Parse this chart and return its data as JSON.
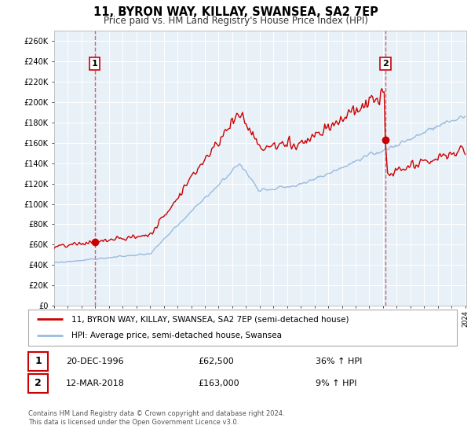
{
  "title": "11, BYRON WAY, KILLAY, SWANSEA, SA2 7EP",
  "subtitle": "Price paid vs. HM Land Registry's House Price Index (HPI)",
  "xlim_start": 1994.0,
  "xlim_end": 2024.08,
  "ylim_min": 0,
  "ylim_max": 270000,
  "yticks": [
    0,
    20000,
    40000,
    60000,
    80000,
    100000,
    120000,
    140000,
    160000,
    180000,
    200000,
    220000,
    240000,
    260000
  ],
  "ytick_labels": [
    "£0",
    "£20K",
    "£40K",
    "£60K",
    "£80K",
    "£100K",
    "£120K",
    "£140K",
    "£160K",
    "£180K",
    "£200K",
    "£220K",
    "£240K",
    "£260K"
  ],
  "sale1_x": 1996.97,
  "sale1_y": 62500,
  "sale1_date": "20-DEC-1996",
  "sale1_price": "£62,500",
  "sale1_hpi": "36% ↑ HPI",
  "sale2_x": 2018.17,
  "sale2_y": 163000,
  "sale2_date": "12-MAR-2018",
  "sale2_price": "£163,000",
  "sale2_hpi": "9% ↑ HPI",
  "legend_line1": "11, BYRON WAY, KILLAY, SWANSEA, SA2 7EP (semi-detached house)",
  "legend_line2": "HPI: Average price, semi-detached house, Swansea",
  "footer1": "Contains HM Land Registry data © Crown copyright and database right 2024.",
  "footer2": "This data is licensed under the Open Government Licence v3.0.",
  "red_color": "#cc0000",
  "blue_color": "#99bbdd",
  "dashed_color": "#cc6666",
  "background_plot": "#e8f0f8",
  "background_fig": "#ffffff",
  "grid_color": "#ffffff"
}
